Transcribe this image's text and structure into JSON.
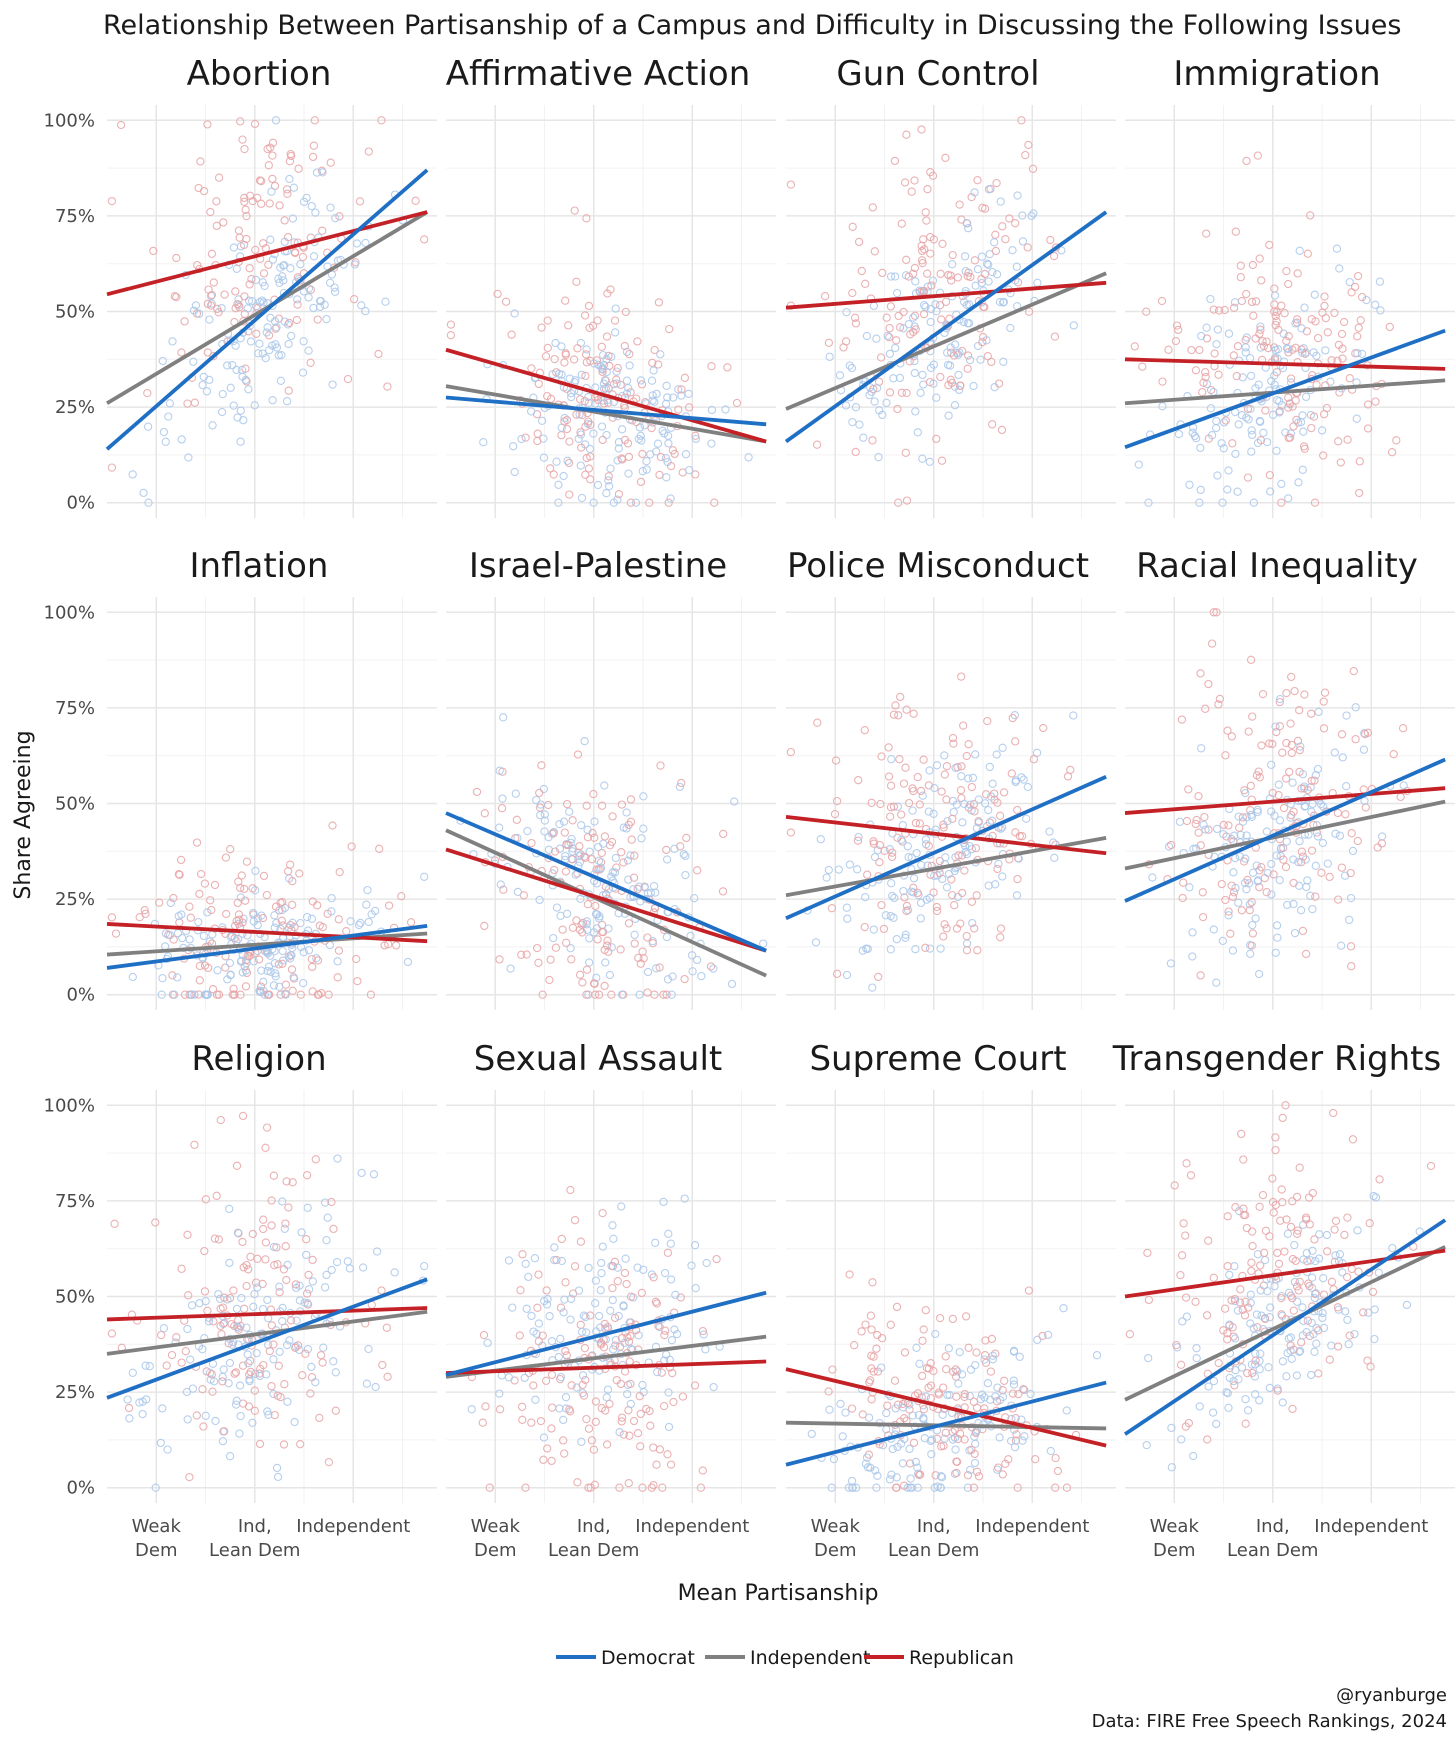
{
  "title": "Relationship Between Partisanship of a Campus and Difficulty in Discussing the Following Issues",
  "ylabel": "Share Agreeing",
  "xlabel": "Mean Partisanship",
  "caption_lines": [
    "@ryanburge",
    "Data: FIRE Free Speech Rankings, 2024"
  ],
  "colors": {
    "Democrat": "#1f6fc5",
    "Independent": "#808080",
    "Republican": "#c42127"
  },
  "chart_data": {
    "type": "scatter",
    "subtype": "faceted scatter with linear fit lines",
    "legend_position": "bottom",
    "grid": true,
    "x_ticks": [
      {
        "value": 2,
        "label": [
          "Weak",
          "Dem"
        ]
      },
      {
        "value": 3,
        "label": [
          "Ind,",
          "Lean Dem"
        ]
      },
      {
        "value": 4,
        "label": [
          "Independent"
        ]
      }
    ],
    "xlim": [
      1.5,
      4.85
    ],
    "y_ticks": [
      0,
      0.25,
      0.5,
      0.75,
      1.0
    ],
    "y_tick_labels": [
      "0%",
      "25%",
      "50%",
      "75%",
      "100%"
    ],
    "ylim": [
      -0.04,
      1.04
    ],
    "series": [
      {
        "name": "Democrat",
        "color": "#1f6fc5"
      },
      {
        "name": "Independent",
        "color": "#808080"
      },
      {
        "name": "Republican",
        "color": "#c42127"
      }
    ],
    "fit_x_range": [
      1.5,
      4.75
    ],
    "facets": [
      {
        "issue": "Abortion",
        "fits": {
          "Democrat": [
            0.14,
            0.87
          ],
          "Independent": [
            0.26,
            0.76
          ],
          "Republican": [
            0.545,
            0.76
          ]
        },
        "point_center": 0.58,
        "point_spread": 0.15
      },
      {
        "issue": "Affirmative Action",
        "fits": {
          "Democrat": [
            0.275,
            0.205
          ],
          "Independent": [
            0.305,
            0.16
          ],
          "Republican": [
            0.4,
            0.16
          ]
        },
        "point_center": 0.25,
        "point_spread": 0.12
      },
      {
        "issue": "Gun Control",
        "fits": {
          "Democrat": [
            0.16,
            0.76
          ],
          "Independent": [
            0.245,
            0.6
          ],
          "Republican": [
            0.51,
            0.575
          ]
        },
        "point_center": 0.5,
        "point_spread": 0.15
      },
      {
        "issue": "Immigration",
        "fits": {
          "Democrat": [
            0.145,
            0.45
          ],
          "Independent": [
            0.26,
            0.32
          ],
          "Republican": [
            0.375,
            0.35
          ]
        },
        "point_center": 0.32,
        "point_spread": 0.13
      },
      {
        "issue": "Inflation",
        "fits": {
          "Democrat": [
            0.07,
            0.18
          ],
          "Independent": [
            0.105,
            0.16
          ],
          "Republican": [
            0.185,
            0.14
          ]
        },
        "point_center": 0.13,
        "point_spread": 0.09
      },
      {
        "issue": "Israel-Palestine",
        "fits": {
          "Democrat": [
            0.475,
            0.115
          ],
          "Independent": [
            0.43,
            0.05
          ],
          "Republican": [
            0.38,
            0.115
          ]
        },
        "point_center": 0.26,
        "point_spread": 0.14
      },
      {
        "issue": "Police Misconduct",
        "fits": {
          "Democrat": [
            0.2,
            0.57
          ],
          "Independent": [
            0.26,
            0.41
          ],
          "Republican": [
            0.465,
            0.37
          ]
        },
        "point_center": 0.4,
        "point_spread": 0.14
      },
      {
        "issue": "Racial Inequality",
        "fits": {
          "Democrat": [
            0.245,
            0.615
          ],
          "Independent": [
            0.33,
            0.505
          ],
          "Republican": [
            0.475,
            0.54
          ]
        },
        "point_center": 0.47,
        "point_spread": 0.15
      },
      {
        "issue": "Religion",
        "fits": {
          "Democrat": [
            0.235,
            0.545
          ],
          "Independent": [
            0.35,
            0.46
          ],
          "Republican": [
            0.44,
            0.47
          ]
        },
        "point_center": 0.42,
        "point_spread": 0.15
      },
      {
        "issue": "Sexual Assault",
        "fits": {
          "Democrat": [
            0.295,
            0.51
          ],
          "Independent": [
            0.29,
            0.395
          ],
          "Republican": [
            0.3,
            0.33
          ]
        },
        "point_center": 0.37,
        "point_spread": 0.14
      },
      {
        "issue": "Supreme Court",
        "fits": {
          "Democrat": [
            0.06,
            0.275
          ],
          "Independent": [
            0.17,
            0.155
          ],
          "Republican": [
            0.31,
            0.11
          ]
        },
        "point_center": 0.17,
        "point_spread": 0.1
      },
      {
        "issue": "Transgender Rights",
        "fits": {
          "Democrat": [
            0.14,
            0.7
          ],
          "Independent": [
            0.23,
            0.63
          ],
          "Republican": [
            0.5,
            0.62
          ]
        },
        "point_center": 0.5,
        "point_spread": 0.15
      }
    ]
  }
}
